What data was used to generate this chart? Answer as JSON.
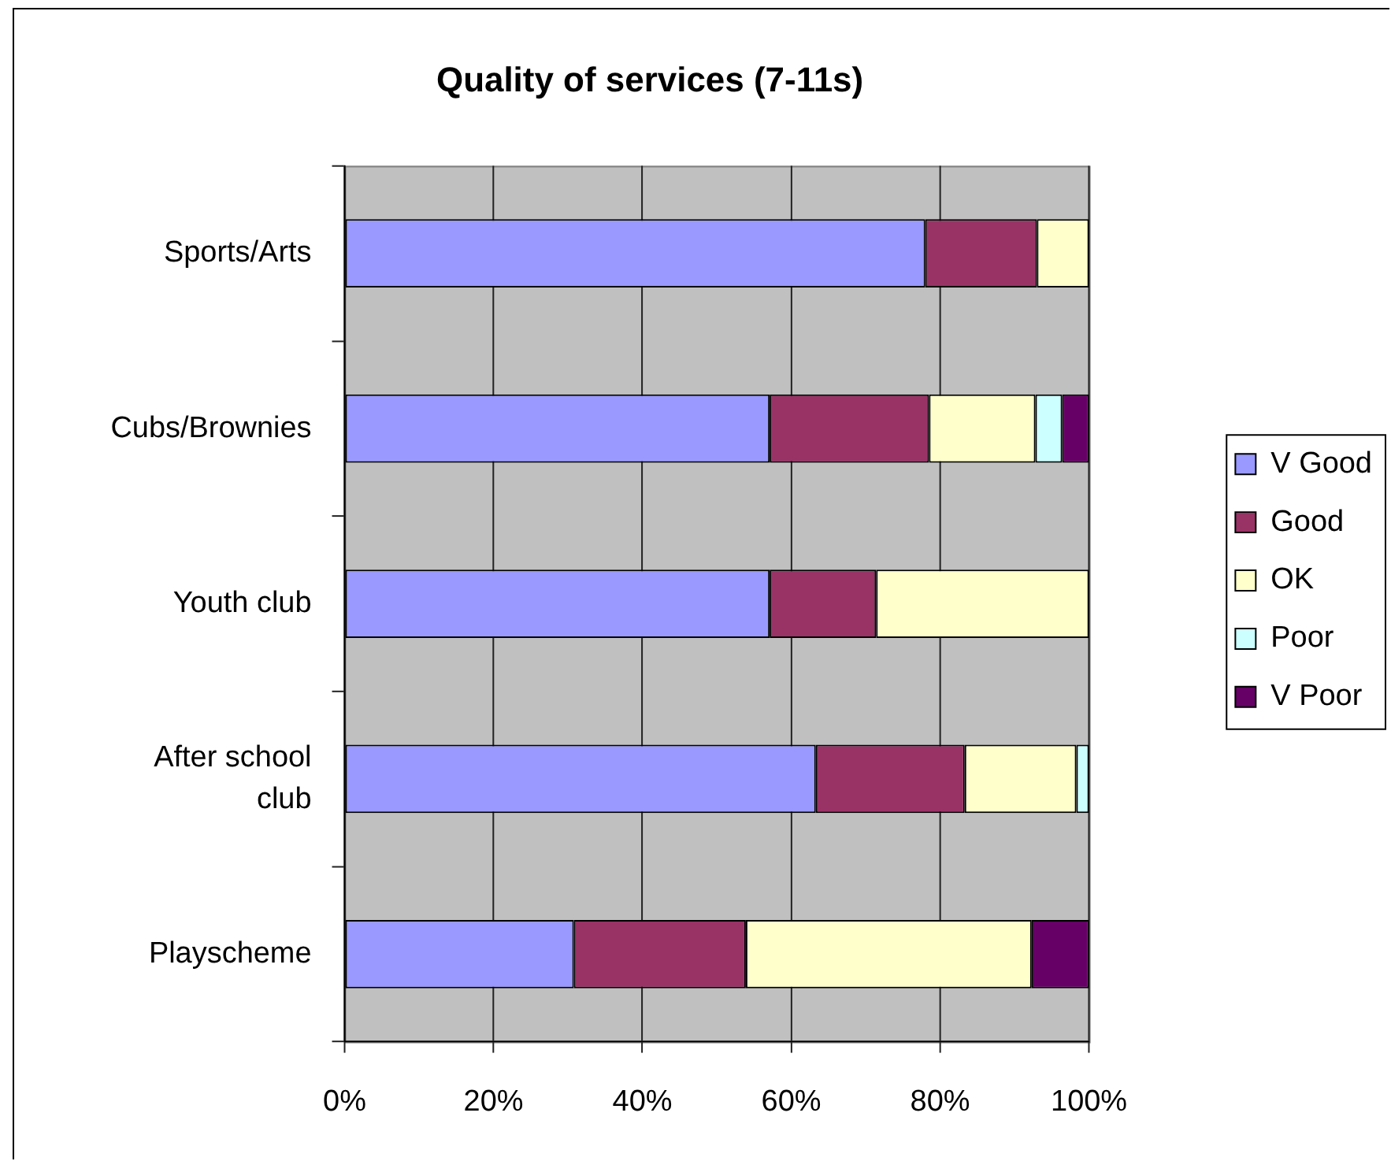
{
  "chart_data": {
    "type": "bar",
    "title": "Quality of services (7-11s)",
    "orientation": "horizontal",
    "stacked": true,
    "categories": [
      "Sports/Arts",
      "Cubs/Brownies",
      "Youth club",
      "After school club",
      "Playscheme"
    ],
    "series": [
      {
        "name": "V Good",
        "color": "#9999ff",
        "values": [
          78,
          57.1,
          57.1,
          63.3,
          30.8
        ]
      },
      {
        "name": "Good",
        "color": "#993366",
        "values": [
          15,
          21.4,
          14.3,
          20,
          23.1
        ]
      },
      {
        "name": "OK",
        "color": "#ffffcc",
        "values": [
          7,
          14.3,
          28.6,
          15,
          38.4
        ]
      },
      {
        "name": "Poor",
        "color": "#ccffff",
        "values": [
          0,
          3.6,
          0,
          1.7,
          0
        ]
      },
      {
        "name": "V Poor",
        "color": "#660066",
        "values": [
          0,
          3.6,
          0,
          0,
          7.7
        ]
      }
    ],
    "xlim": [
      0,
      100
    ],
    "xticks": [
      {
        "value": 0,
        "label": "0%"
      },
      {
        "value": 20,
        "label": "20%"
      },
      {
        "value": 40,
        "label": "40%"
      },
      {
        "value": 60,
        "label": "60%"
      },
      {
        "value": 80,
        "label": "80%"
      },
      {
        "value": 100,
        "label": "100%"
      }
    ],
    "grid": "x",
    "legend": "right"
  }
}
